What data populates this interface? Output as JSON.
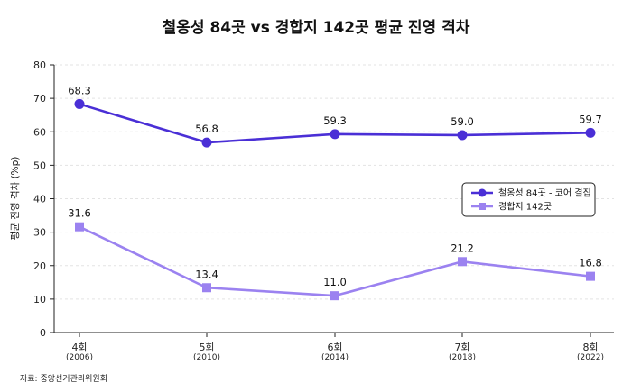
{
  "chart_data": {
    "type": "line",
    "title": "철옹성 84곳 vs 경합지 142곳 평균 진영 격차",
    "ylabel": "평균 진영 격차 (%p)",
    "xlabel": "",
    "ylim": [
      0,
      80
    ],
    "yticks": [
      0,
      10,
      20,
      30,
      40,
      50,
      60,
      70,
      80
    ],
    "grid": true,
    "legend_position": "right",
    "categories": [
      {
        "label": "4회",
        "sub": "(2006)"
      },
      {
        "label": "5회",
        "sub": "(2010)"
      },
      {
        "label": "6회",
        "sub": "(2014)"
      },
      {
        "label": "7회",
        "sub": "(2018)"
      },
      {
        "label": "8회",
        "sub": "(2022)"
      }
    ],
    "series": [
      {
        "name": "철옹성 84곳 - 코어 결집",
        "values": [
          68.3,
          56.8,
          59.3,
          59.0,
          59.7
        ],
        "labels": [
          "68.3",
          "56.8",
          "59.3",
          "59.0",
          "59.7"
        ],
        "color": "#4a2fd6",
        "marker": "circle"
      },
      {
        "name": "경합지 142곳",
        "values": [
          31.6,
          13.4,
          11.0,
          21.2,
          16.8
        ],
        "labels": [
          "31.6",
          "13.4",
          "11.0",
          "21.2",
          "16.8"
        ],
        "color": "#9b82f0",
        "marker": "square"
      }
    ],
    "source": "자료: 중앙선거관리위원회"
  }
}
